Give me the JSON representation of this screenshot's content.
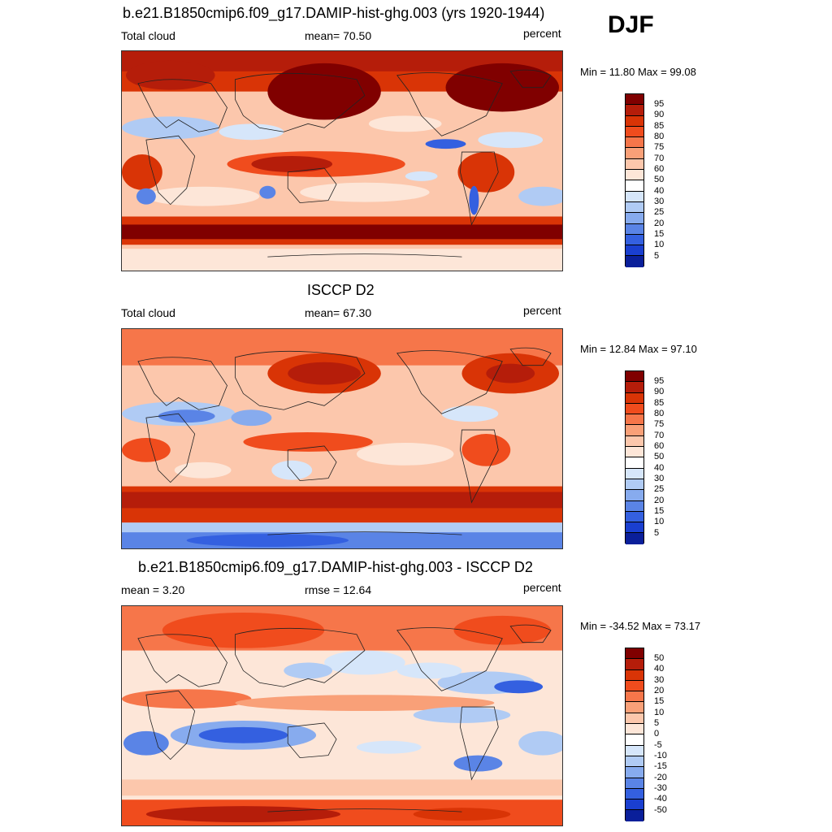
{
  "season": "DJF",
  "panels": [
    {
      "title": "b.e21.B1850cmip6.f09_g17.DAMIP-hist-ghg.003 (yrs 1920-1944)",
      "left_label": "Total cloud",
      "center_label": "mean=  70.50",
      "units": "percent",
      "minmax": "Min =  11.80 Max =  99.08",
      "colorbar": {
        "labels": [
          "95",
          "90",
          "85",
          "80",
          "75",
          "70",
          "60",
          "50",
          "40",
          "30",
          "25",
          "20",
          "15",
          "10",
          "5"
        ],
        "colors": [
          "#800000",
          "#b51d0a",
          "#d93406",
          "#f04c1d",
          "#f6764a",
          "#f9a078",
          "#fcc7ac",
          "#fde6d8",
          "#ffffff",
          "#d6e6fa",
          "#b0cbf4",
          "#87abee",
          "#5a84e6",
          "#3460e0",
          "#1a3fd0",
          "#0a1f9a"
        ]
      }
    },
    {
      "title": "ISCCP D2",
      "left_label": "Total cloud",
      "center_label": "mean=  67.30",
      "units": "percent",
      "minmax": "Min =  12.84 Max =  97.10",
      "colorbar": {
        "labels": [
          "95",
          "90",
          "85",
          "80",
          "75",
          "70",
          "60",
          "50",
          "40",
          "30",
          "25",
          "20",
          "15",
          "10",
          "5"
        ],
        "colors": [
          "#800000",
          "#b51d0a",
          "#d93406",
          "#f04c1d",
          "#f6764a",
          "#f9a078",
          "#fcc7ac",
          "#fde6d8",
          "#ffffff",
          "#d6e6fa",
          "#b0cbf4",
          "#87abee",
          "#5a84e6",
          "#3460e0",
          "#1a3fd0",
          "#0a1f9a"
        ]
      }
    },
    {
      "title": "b.e21.B1850cmip6.f09_g17.DAMIP-hist-ghg.003 - ISCCP D2",
      "left_label": "mean =   3.20",
      "center_label": "rmse =  12.64",
      "units": "percent",
      "minmax": "Min = -34.52 Max =  73.17",
      "colorbar": {
        "labels": [
          "50",
          "40",
          "30",
          "20",
          "15",
          "10",
          "5",
          "0",
          "-5",
          "-10",
          "-15",
          "-20",
          "-30",
          "-40",
          "-50"
        ],
        "colors": [
          "#800000",
          "#b51d0a",
          "#d93406",
          "#f04c1d",
          "#f6764a",
          "#f9a078",
          "#fcc7ac",
          "#fde6d8",
          "#ffffff",
          "#d6e6fa",
          "#b0cbf4",
          "#87abee",
          "#5a84e6",
          "#3460e0",
          "#1a3fd0",
          "#0a1f9a"
        ]
      }
    }
  ]
}
